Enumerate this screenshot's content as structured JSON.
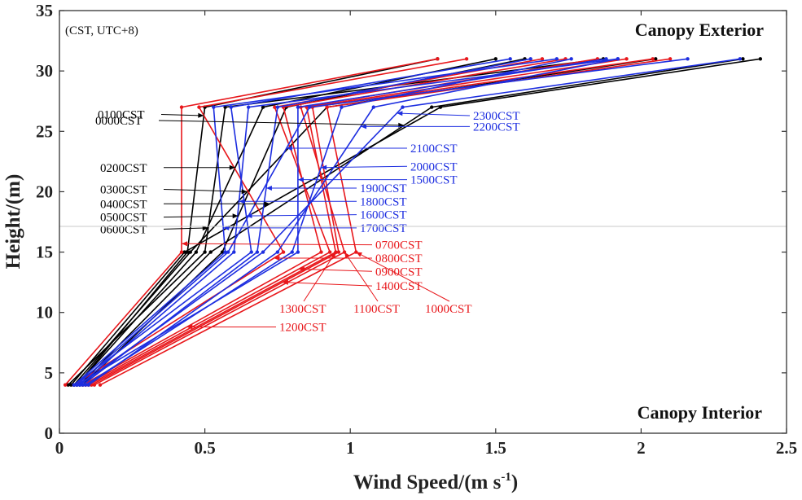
{
  "chart_data": {
    "type": "line",
    "title": "",
    "xlabel": "Wind Speed/",
    "xlabel_unit": "(m s",
    "xlabel_unit_exp": "-1",
    "xlabel_unit_close": ")",
    "ylabel": "Height/(m)",
    "xlim": [
      0,
      2.5
    ],
    "ylim": [
      0,
      35
    ],
    "xticks": [
      0,
      0.5,
      1,
      1.5,
      2,
      2.5
    ],
    "yticks": [
      0,
      5,
      10,
      15,
      20,
      25,
      30,
      35
    ],
    "xtick_labels": [
      "0",
      "0.5",
      "1",
      "1.5",
      "2",
      "2.5"
    ],
    "ytick_labels": [
      "0",
      "5",
      "10",
      "15",
      "20",
      "25",
      "30",
      "35"
    ],
    "grid": false,
    "heights": [
      4,
      15,
      27,
      31
    ],
    "annotations": {
      "time_zone": "(CST, UTC+8)",
      "top_right": "Canopy Exterior",
      "bottom_right": "Canopy Interior"
    },
    "colors": {
      "night": "#000000",
      "day": "#e8171b",
      "evening": "#1d2ee0"
    },
    "series": [
      {
        "name": "0000CST",
        "color": "night",
        "values": [
          0.07,
          0.52,
          1.28,
          2.35
        ],
        "label_y": 25.9,
        "arrow_h": 25.5
      },
      {
        "name": "0100CST",
        "color": "night",
        "values": [
          0.06,
          0.44,
          0.5,
          1.3
        ],
        "label_y": 26.4,
        "arrow_h": 26.3
      },
      {
        "name": "0200CST",
        "color": "night",
        "values": [
          0.06,
          0.47,
          0.7,
          1.5
        ],
        "label_y": 22.0,
        "arrow_h": 22.0
      },
      {
        "name": "0300CST",
        "color": "night",
        "values": [
          0.05,
          0.45,
          0.92,
          2.05
        ],
        "label_y": 20.2,
        "arrow_h": 20.0
      },
      {
        "name": "0400CST",
        "color": "night",
        "values": [
          0.04,
          0.43,
          1.31,
          2.41
        ],
        "label_y": 19.0,
        "arrow_h": 19.0
      },
      {
        "name": "0500CST",
        "color": "night",
        "values": [
          0.08,
          0.56,
          0.78,
          1.6
        ],
        "label_y": 17.9,
        "arrow_h": 18.0
      },
      {
        "name": "0600CST",
        "color": "night",
        "values": [
          0.03,
          0.5,
          0.57,
          1.87
        ],
        "label_y": 16.9,
        "arrow_h": 17.0
      },
      {
        "name": "0700CST",
        "color": "day",
        "values": [
          0.02,
          0.42,
          0.42,
          1.3
        ],
        "label_y": 15.6,
        "arrow_h": 15.7
      },
      {
        "name": "0800CST",
        "color": "day",
        "values": [
          0.05,
          0.77,
          0.48,
          1.4
        ],
        "label_y": 14.5,
        "arrow_h": 14.5
      },
      {
        "name": "0900CST",
        "color": "day",
        "values": [
          0.09,
          0.93,
          0.74,
          1.66
        ],
        "label_y": 13.4,
        "arrow_h": 13.6
      },
      {
        "name": "1000CST",
        "color": "day",
        "values": [
          0.14,
          1.02,
          0.92,
          2.1
        ],
        "label_y": 10.0,
        "arrow_h": 15.0
      },
      {
        "name": "1100CST",
        "color": "day",
        "values": [
          0.12,
          0.98,
          0.83,
          1.85
        ],
        "label_y": 10.0,
        "arrow_h": 15.0
      },
      {
        "name": "1200CST",
        "color": "day",
        "values": [
          0.08,
          0.9,
          0.77,
          1.74
        ],
        "label_y": 8.8,
        "arrow_h": 8.8
      },
      {
        "name": "1300CST",
        "color": "day",
        "values": [
          0.1,
          0.95,
          0.85,
          1.95
        ],
        "label_y": 10.0,
        "arrow_h": 15.0
      },
      {
        "name": "1400CST",
        "color": "day",
        "values": [
          0.11,
          0.96,
          0.87,
          2.04
        ],
        "label_y": 12.2,
        "arrow_h": 12.5
      },
      {
        "name": "1500CST",
        "color": "evening",
        "values": [
          0.06,
          0.82,
          0.82,
          1.88
        ],
        "label_y": 21.0,
        "arrow_h": 21.0
      },
      {
        "name": "1600CST",
        "color": "evening",
        "values": [
          0.05,
          0.66,
          0.59,
          1.55
        ],
        "label_y": 18.1,
        "arrow_h": 18.0
      },
      {
        "name": "1700CST",
        "color": "evening",
        "values": [
          0.05,
          0.57,
          0.53,
          1.71
        ],
        "label_y": 17.0,
        "arrow_h": 17.0
      },
      {
        "name": "1800CST",
        "color": "evening",
        "values": [
          0.07,
          0.6,
          0.65,
          1.92
        ],
        "label_y": 19.2,
        "arrow_h": 19.2
      },
      {
        "name": "1900CST",
        "color": "evening",
        "values": [
          0.08,
          0.68,
          0.75,
          1.62
        ],
        "label_y": 20.3,
        "arrow_h": 20.3
      },
      {
        "name": "2000CST",
        "color": "evening",
        "values": [
          0.09,
          0.8,
          0.97,
          1.76
        ],
        "label_y": 22.1,
        "arrow_h": 22.0
      },
      {
        "name": "2100CST",
        "color": "evening",
        "values": [
          0.06,
          0.58,
          0.86,
          2.16
        ],
        "label_y": 23.6,
        "arrow_h": 23.6
      },
      {
        "name": "2200CST",
        "color": "evening",
        "values": [
          0.1,
          0.75,
          1.08,
          1.92
        ],
        "label_y": 25.4,
        "arrow_h": 25.4
      },
      {
        "name": "2300CST",
        "color": "evening",
        "values": [
          0.07,
          0.7,
          1.18,
          2.34
        ],
        "label_y": 26.3,
        "arrow_h": 26.5
      }
    ]
  }
}
